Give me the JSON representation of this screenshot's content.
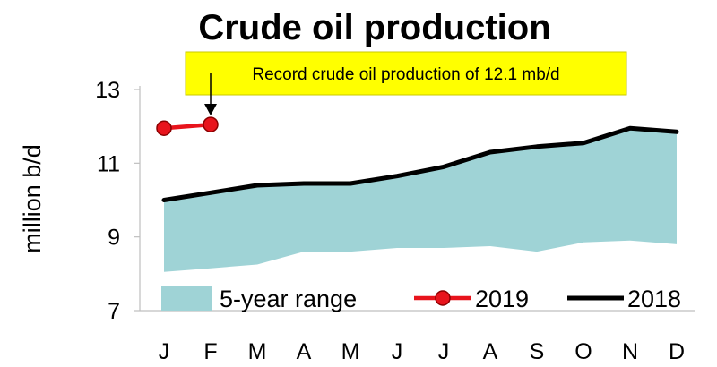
{
  "chart_data": {
    "type": "line",
    "title": "Crude oil production",
    "ylabel": "million b/d",
    "xlabel": "",
    "categories": [
      "J",
      "F",
      "M",
      "A",
      "M",
      "J",
      "J",
      "A",
      "S",
      "O",
      "N",
      "D"
    ],
    "ylim": [
      7,
      13
    ],
    "yticks": [
      7,
      9,
      11,
      13
    ],
    "grid": false,
    "legend_position": "bottom",
    "range_band": {
      "name": "5-year range",
      "color": "#9fd3d6",
      "low": [
        8.05,
        8.15,
        8.25,
        8.6,
        8.6,
        8.7,
        8.7,
        8.75,
        8.6,
        8.85,
        8.9,
        8.8
      ],
      "high": [
        10.0,
        10.2,
        10.4,
        10.45,
        10.45,
        10.65,
        10.9,
        11.3,
        11.45,
        11.55,
        11.95,
        11.85
      ]
    },
    "series": [
      {
        "name": "2019",
        "color": "#e8141c",
        "values": [
          11.95,
          12.05,
          null,
          null,
          null,
          null,
          null,
          null,
          null,
          null,
          null,
          null
        ]
      },
      {
        "name": "2018",
        "color": "#000000",
        "values": [
          10.0,
          10.2,
          10.4,
          10.45,
          10.45,
          10.65,
          10.9,
          11.3,
          11.45,
          11.55,
          11.95,
          11.85
        ]
      }
    ],
    "annotation": {
      "text": "Record crude oil production of 12.1 mb/d",
      "bg_color": "#ffff00",
      "points_to": {
        "category_index": 1,
        "value": 12.05
      }
    }
  }
}
